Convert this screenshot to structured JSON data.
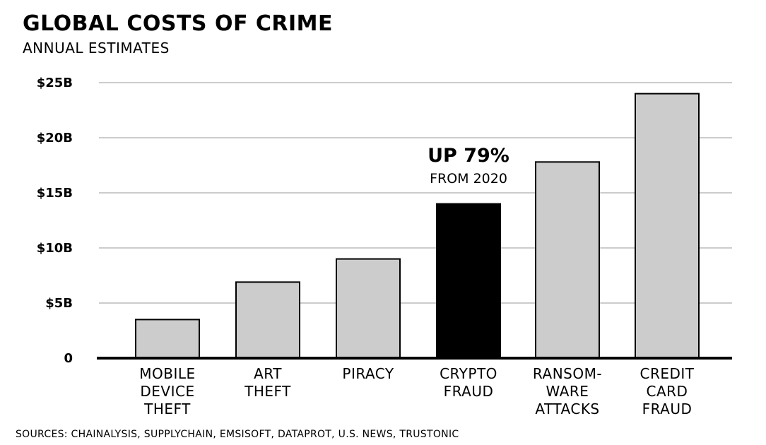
{
  "chart_data": {
    "type": "bar",
    "title": "GLOBAL COSTS OF CRIME",
    "subtitle": "ANNUAL ESTIMATES",
    "categories": [
      "MOBILE DEVICE THEFT",
      "ART THEFT",
      "PIRACY",
      "CRYPTO FRAUD",
      "RANSOM-WARE ATTACKS",
      "CREDIT CARD FRAUD"
    ],
    "category_lines": [
      [
        "MOBILE",
        "DEVICE",
        "THEFT"
      ],
      [
        "ART",
        "THEFT"
      ],
      [
        "PIRACY"
      ],
      [
        "CRYPTO",
        "FRAUD"
      ],
      [
        "RANSOM-",
        "WARE",
        "ATTACKS"
      ],
      [
        "CREDIT",
        "CARD",
        "FRAUD"
      ]
    ],
    "values": [
      3.5,
      6.9,
      9,
      14,
      17.8,
      24
    ],
    "unit": "billion USD",
    "ylim": [
      0,
      25
    ],
    "yticks": [
      0,
      5,
      10,
      15,
      20,
      25
    ],
    "ytick_labels": [
      "0",
      "$5B",
      "$10B",
      "$15B",
      "$20B",
      "$25B"
    ],
    "grid": true,
    "highlight_index": 3,
    "bar_color": "#cccccc",
    "highlight_color": "#000000",
    "annotation": {
      "line1": "UP 79%",
      "line2": "FROM 2020",
      "category": "CRYPTO FRAUD"
    }
  },
  "source": "SOURCES: CHAINALYSIS, SUPPLYCHAIN, EMSISOFT, DATAPROT, U.S. NEWS, TRUSTONIC"
}
